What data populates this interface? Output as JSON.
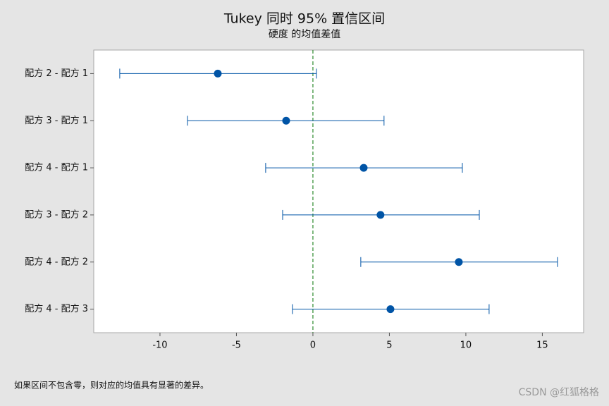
{
  "chart_data": {
    "type": "interval",
    "title": "Tukey 同时 95% 置信区间",
    "subtitle": "硬度 的均值差值",
    "categories": [
      "配方 2 - 配方 1",
      "配方 3 - 配方 1",
      "配方 4 - 配方 1",
      "配方 3 - 配方 2",
      "配方 4 - 配方 2",
      "配方 4 - 配方 3"
    ],
    "values": [
      -6.22,
      -1.75,
      3.32,
      4.42,
      9.54,
      5.07
    ],
    "lower": [
      -12.63,
      -8.2,
      -3.09,
      -1.98,
      3.13,
      -1.34
    ],
    "upper": [
      0.23,
      4.65,
      9.77,
      10.88,
      15.99,
      11.52
    ],
    "color": "#0054a6",
    "reference_line": 0,
    "reference_color": "#2e8b2e",
    "xlim": [
      -14.33,
      17.7
    ],
    "xticks": [
      -10,
      -5,
      0,
      5,
      10,
      15
    ],
    "grid": false,
    "footnote": "如果区间不包含零，则对应的均值具有显著的差异。",
    "watermark": "CSDN @红狐格格"
  }
}
